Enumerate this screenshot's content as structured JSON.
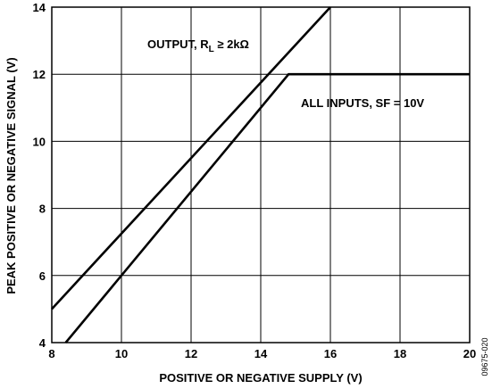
{
  "chart_data": {
    "type": "line",
    "xlabel": "POSITIVE OR NEGATIVE SUPPLY (V)",
    "ylabel": "PEAK POSITIVE OR NEGATIVE SIGNAL (V)",
    "xlim": [
      8,
      20
    ],
    "ylim": [
      4,
      14
    ],
    "x_ticks": [
      8,
      10,
      12,
      14,
      16,
      18,
      20
    ],
    "y_ticks": [
      4,
      6,
      8,
      10,
      12,
      14
    ],
    "grid": true,
    "legend": "none",
    "series": [
      {
        "name": "OUTPUT, RL ≥ 2kΩ",
        "x": [
          8,
          16
        ],
        "y": [
          5,
          14
        ]
      },
      {
        "name": "ALL INPUTS, SF = 10V",
        "x": [
          8.4,
          14.8,
          20
        ],
        "y": [
          4,
          12,
          12
        ]
      }
    ],
    "annotations": {
      "output_prefix": "OUTPUT, R",
      "output_sub": "L",
      "output_suffix": " ≥ 2kΩ",
      "inputs": "ALL INPUTS, SF = 10V"
    },
    "figure_id": "09675-020"
  }
}
